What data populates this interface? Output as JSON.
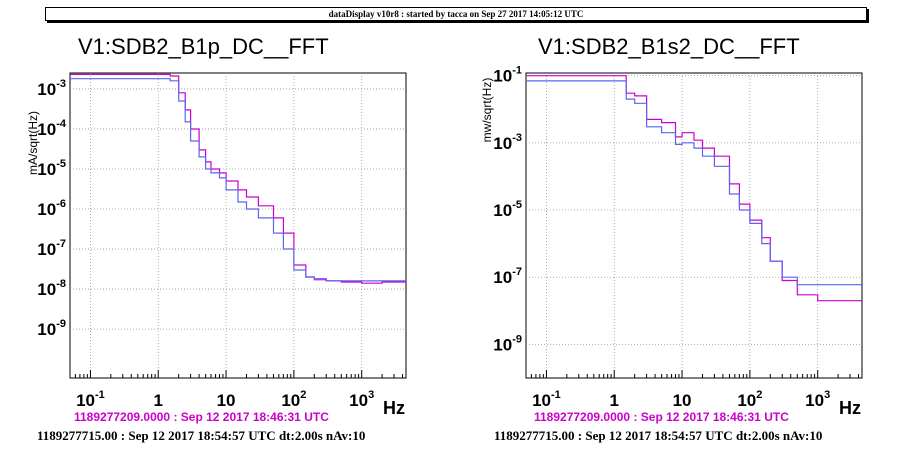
{
  "banner": "dataDisplay v10r8 : started by tacca on Sep 27 2017 14:05:12 UTC",
  "chart_data": [
    {
      "type": "line",
      "title": "V1:SDB2_B1p_DC__FFT",
      "ylabel": "mA/sqrt(Hz)",
      "xlabel": "Hz",
      "xscale": "log",
      "yscale": "log",
      "xlim": [
        0.05,
        4500
      ],
      "ylim": [
        6e-11,
        0.0025
      ],
      "grid": true,
      "x_ticks": [
        {
          "base": "10",
          "exp": "-1",
          "v": 0.1
        },
        {
          "base": "1",
          "exp": "",
          "v": 1
        },
        {
          "base": "10",
          "exp": "",
          "v": 10
        },
        {
          "base": "10",
          "exp": "2",
          "v": 100
        },
        {
          "base": "10",
          "exp": "3",
          "v": 1000
        }
      ],
      "y_ticks": [
        {
          "base": "10",
          "exp": "-9",
          "v": 1e-09
        },
        {
          "base": "10",
          "exp": "-8",
          "v": 1e-08
        },
        {
          "base": "10",
          "exp": "-7",
          "v": 1e-07
        },
        {
          "base": "10",
          "exp": "-6",
          "v": 1e-06
        },
        {
          "base": "10",
          "exp": "-5",
          "v": 1e-05
        },
        {
          "base": "10",
          "exp": "-4",
          "v": 0.0001
        },
        {
          "base": "10",
          "exp": "-3",
          "v": 0.001
        }
      ],
      "series": [
        {
          "color": "#cc00cc",
          "x": [
            0.05,
            1,
            1.5,
            2,
            2.5,
            3,
            4,
            5,
            6,
            8,
            10,
            15,
            20,
            30,
            50,
            70,
            100,
            150,
            200,
            300,
            500,
            1000,
            2000,
            4500
          ],
          "y": [
            0.0023,
            0.0023,
            0.0021,
            0.0008,
            0.0003,
            0.0001,
            3e-05,
            1.5e-05,
            1e-05,
            8e-06,
            5e-06,
            3e-06,
            2e-06,
            1.2e-06,
            6e-07,
            2.5e-07,
            4e-08,
            2e-08,
            1.8e-08,
            1.6e-08,
            1.5e-08,
            1.4e-08,
            1.5e-08,
            1.5e-08
          ]
        },
        {
          "color": "#5a66ee",
          "x": [
            0.05,
            1,
            1.5,
            2,
            2.5,
            3,
            4,
            5,
            6,
            8,
            10,
            15,
            20,
            30,
            50,
            70,
            100,
            150,
            200,
            300,
            500,
            1000,
            2000,
            4500
          ],
          "y": [
            0.0018,
            0.0018,
            0.0016,
            0.0005,
            0.00015,
            5e-05,
            2e-05,
            1e-05,
            8e-06,
            6e-06,
            3e-06,
            1.5e-06,
            1e-06,
            6e-07,
            2.5e-07,
            1e-07,
            3e-08,
            2e-08,
            1.7e-08,
            1.6e-08,
            1.6e-08,
            1.6e-08,
            1.6e-08,
            1.6e-08
          ]
        }
      ],
      "footer_magenta": "1189277209.0000 : Sep 12 2017 18:46:31 UTC",
      "footer_black": "1189277715.00 : Sep 12 2017 18:54:57 UTC dt:2.00s nAv:10"
    },
    {
      "type": "line",
      "title": "V1:SDB2_B1s2_DC__FFT",
      "ylabel": "mw/sqrt(Hz)",
      "xlabel": "Hz",
      "xscale": "log",
      "yscale": "log",
      "xlim": [
        0.05,
        4500
      ],
      "ylim": [
        1e-10,
        0.12
      ],
      "grid": true,
      "x_ticks": [
        {
          "base": "10",
          "exp": "-1",
          "v": 0.1
        },
        {
          "base": "1",
          "exp": "",
          "v": 1
        },
        {
          "base": "10",
          "exp": "",
          "v": 10
        },
        {
          "base": "10",
          "exp": "2",
          "v": 100
        },
        {
          "base": "10",
          "exp": "3",
          "v": 1000
        }
      ],
      "y_ticks": [
        {
          "base": "10",
          "exp": "-9",
          "v": 1e-09
        },
        {
          "base": "10",
          "exp": "-7",
          "v": 1e-07
        },
        {
          "base": "10",
          "exp": "-5",
          "v": 1e-05
        },
        {
          "base": "10",
          "exp": "-3",
          "v": 0.001
        },
        {
          "base": "10",
          "exp": "-1",
          "v": 0.1
        }
      ],
      "series": [
        {
          "color": "#cc00cc",
          "x": [
            0.05,
            1,
            1.5,
            2,
            3,
            5,
            8,
            10,
            15,
            20,
            30,
            50,
            70,
            100,
            150,
            200,
            300,
            500,
            1000,
            2000,
            4500
          ],
          "y": [
            0.1,
            0.1,
            0.03,
            0.025,
            0.005,
            0.004,
            0.0015,
            0.002,
            0.0012,
            0.0007,
            0.0004,
            6e-05,
            1.5e-05,
            5e-06,
            1.5e-06,
            3e-07,
            8e-08,
            3e-08,
            2e-08,
            2e-08,
            2e-08
          ]
        },
        {
          "color": "#5a66ee",
          "x": [
            0.05,
            1,
            1.5,
            2,
            3,
            5,
            8,
            10,
            15,
            20,
            30,
            50,
            70,
            100,
            150,
            200,
            300,
            500,
            1000,
            2000,
            4500
          ],
          "y": [
            0.07,
            0.07,
            0.02,
            0.015,
            0.003,
            0.002,
            0.0009,
            0.001,
            0.0007,
            0.0004,
            0.0002,
            3e-05,
            1e-05,
            4e-06,
            1e-06,
            3e-07,
            1e-07,
            6e-08,
            6e-08,
            6e-08,
            6e-08
          ]
        }
      ],
      "footer_magenta": "1189277209.0000 : Sep 12 2017 18:46:31 UTC",
      "footer_black": "1189277715.00 : Sep 12 2017 18:54:57 UTC dt:2.00s nAv:10"
    }
  ]
}
